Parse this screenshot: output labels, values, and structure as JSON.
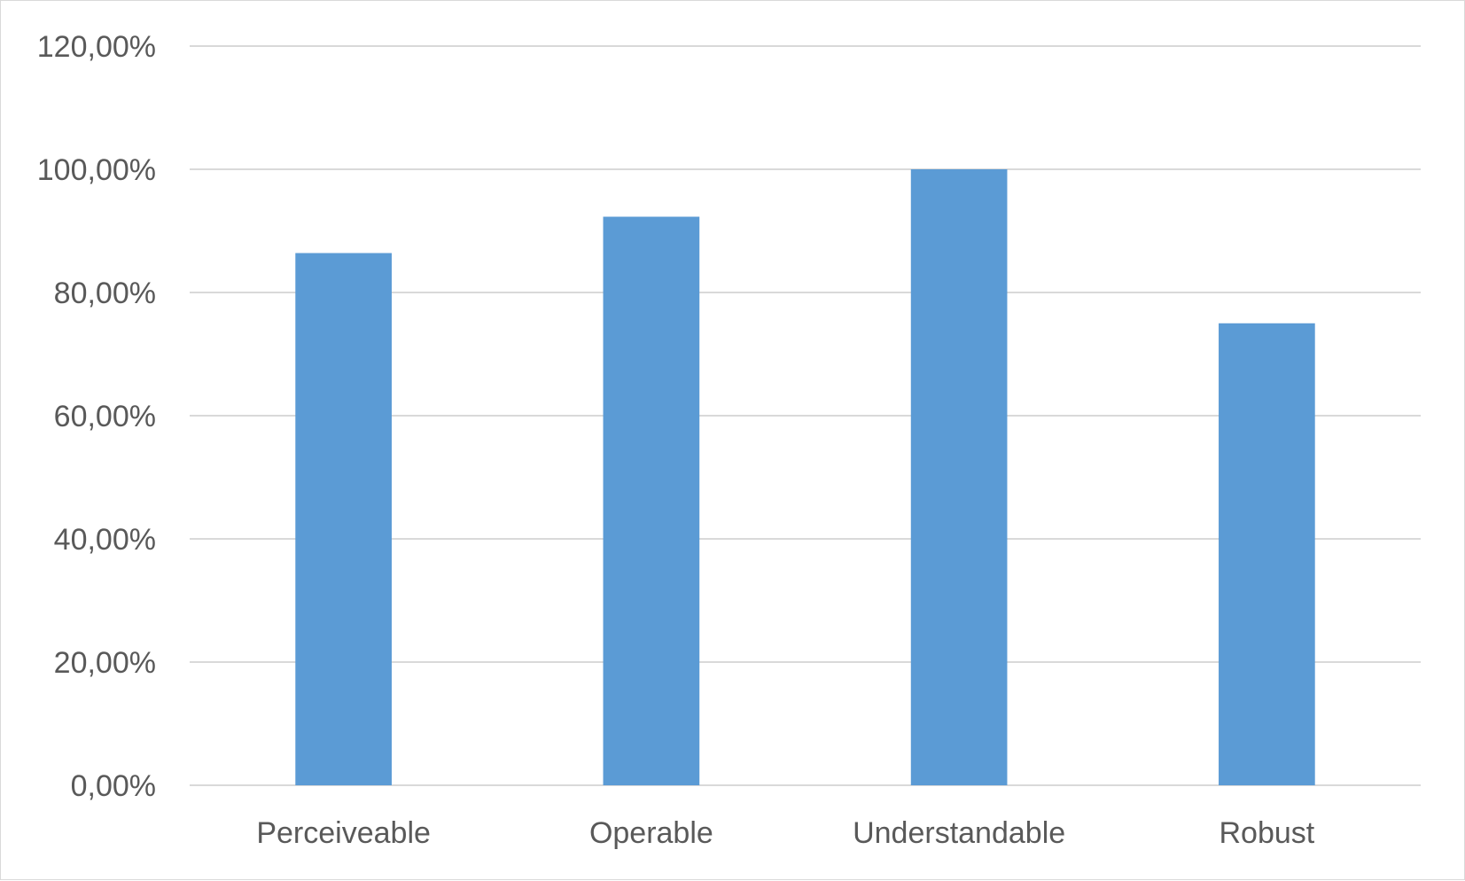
{
  "chart_data": {
    "type": "bar",
    "categories": [
      "Perceiveable",
      "Operable",
      "Understandable",
      "Robust"
    ],
    "values": [
      86.4,
      92.3,
      100.0,
      75.0
    ],
    "y_ticks": [
      "0,00%",
      "20,00%",
      "40,00%",
      "60,00%",
      "80,00%",
      "100,00%",
      "120,00%"
    ],
    "ylim": [
      0,
      120
    ],
    "y_tick_step": 20,
    "grid": true,
    "legend": "none",
    "bar_color": "#5b9bd5",
    "grid_color": "#d9d9d9",
    "text_color": "#595959"
  }
}
